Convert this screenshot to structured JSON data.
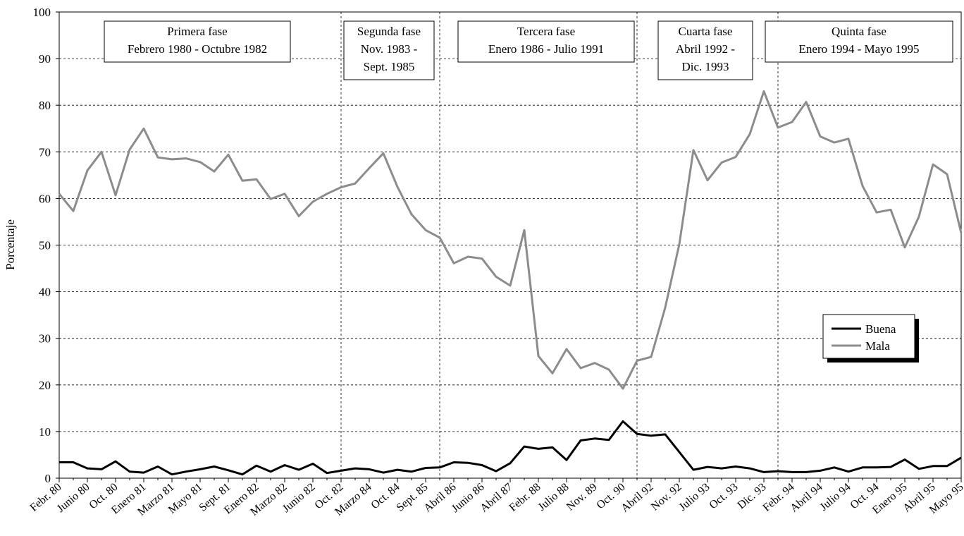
{
  "chart_data": {
    "type": "line",
    "y_label": "Porcentaje",
    "categories": [
      "Febr. 80",
      null,
      "Junio 80",
      null,
      "Oct. 80",
      null,
      "Enero 81",
      null,
      "Marzo 81",
      null,
      "Mayo 81",
      null,
      "Sept. 81",
      null,
      "Enero 82",
      null,
      "Marzo 82",
      null,
      "Junio 82",
      null,
      "Oct. 82",
      null,
      "Marzo 84",
      null,
      "Oct. 84",
      null,
      "Sept. 85",
      null,
      "Abril 86",
      null,
      "Junio 86",
      null,
      "Abril 87",
      null,
      "Febr. 88",
      null,
      "Julio 88",
      null,
      "Nov. 89",
      null,
      "Oct. 90",
      null,
      "Abril 92",
      null,
      "Nov. 92",
      null,
      "Julio 93",
      null,
      "Oct. 93",
      null,
      "Dic. 93",
      null,
      "Febr. 94",
      null,
      "Abril 94",
      null,
      "Julio 94",
      null,
      "Oct. 94",
      null,
      "Enero 95",
      null,
      "Abril 95",
      null,
      "Mayo 95"
    ],
    "series": [
      {
        "name": "Buena",
        "color": "#000000",
        "values": [
          3.4,
          3.4,
          2.1,
          1.9,
          3.6,
          1.4,
          1.2,
          2.5,
          0.8,
          1.4,
          1.9,
          2.5,
          1.7,
          0.8,
          2.7,
          1.4,
          2.8,
          1.8,
          3.1,
          1.1,
          1.6,
          2.1,
          1.9,
          1.2,
          1.8,
          1.4,
          2.2,
          2.3,
          3.4,
          3.3,
          2.8,
          1.5,
          3.2,
          6.8,
          6.3,
          6.6,
          3.9,
          8.1,
          8.5,
          8.2,
          12.2,
          9.5,
          9.1,
          9.4,
          5.6,
          1.8,
          2.4,
          2.1,
          2.5,
          2.1,
          1.3,
          1.5,
          1.3,
          1.3,
          1.6,
          2.3,
          1.4,
          2.3,
          2.3,
          2.4,
          4,
          2,
          2.6,
          2.6,
          4.4
        ]
      },
      {
        "name": "Mala",
        "color": "#8c8c8c",
        "values": [
          61,
          57.3,
          66,
          70,
          60.7,
          70.5,
          75,
          68.8,
          68.4,
          68.6,
          67.8,
          65.8,
          69.4,
          63.8,
          64.1,
          59.9,
          61,
          56.2,
          59.3,
          61,
          62.4,
          63.2,
          66.5,
          69.7,
          62.5,
          56.6,
          53.2,
          51.6,
          46.1,
          47.5,
          47.1,
          43.2,
          41.3,
          53.2,
          26.2,
          22.5,
          27.7,
          23.6,
          24.7,
          23.3,
          19.2,
          25.2,
          26,
          36.6,
          50.2,
          70.4,
          63.9,
          67.7,
          68.9,
          73.8,
          83,
          75.2,
          76.4,
          80.7,
          73.3,
          72,
          72.8,
          62.7,
          57,
          57.6,
          49.5,
          56.1,
          67.3,
          65.2,
          52.6
        ]
      }
    ],
    "ylim": [
      0,
      100
    ],
    "yticks": [
      0,
      10,
      20,
      30,
      40,
      50,
      60,
      70,
      80,
      90,
      100
    ],
    "grid": true,
    "phases": [
      {
        "lines": [
          "Primera fase",
          "Febrero 1980 - Octubre 1982"
        ]
      },
      {
        "lines": [
          "Segunda fase",
          "Nov. 1983 -",
          "Sept. 1985"
        ]
      },
      {
        "lines": [
          "Tercera fase",
          "Enero 1986 - Julio 1991"
        ]
      },
      {
        "lines": [
          "Cuarta fase",
          "Abril 1992 -",
          "Dic. 1993"
        ]
      },
      {
        "lines": [
          "Quinta fase",
          "Enero 1994 - Mayo 1995"
        ]
      }
    ]
  }
}
